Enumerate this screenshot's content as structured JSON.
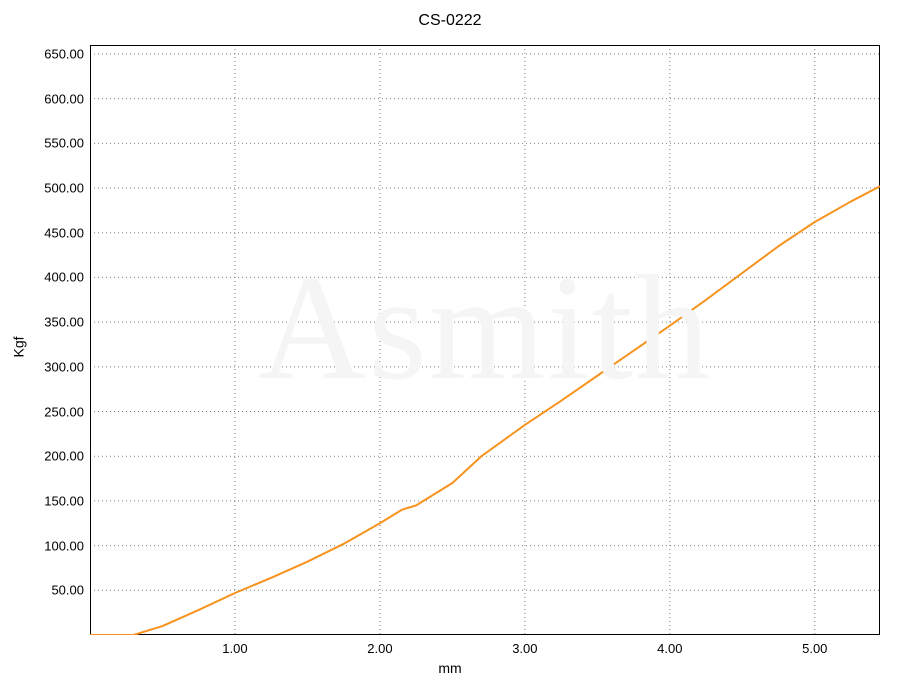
{
  "chart": {
    "type": "line",
    "title": "CS-0222",
    "xlabel": "mm",
    "ylabel": "Kgf",
    "title_fontsize": 16,
    "label_fontsize": 14,
    "tick_fontsize": 13,
    "xlim": [
      0,
      5.45
    ],
    "ylim": [
      0,
      660
    ],
    "xticks": [
      1.0,
      2.0,
      3.0,
      4.0,
      5.0
    ],
    "xtick_labels": [
      "1.00",
      "2.00",
      "3.00",
      "4.00",
      "5.00"
    ],
    "yticks": [
      50,
      100,
      150,
      200,
      250,
      300,
      350,
      400,
      450,
      500,
      550,
      600,
      650
    ],
    "ytick_labels": [
      "50.00",
      "100.00",
      "150.00",
      "200.00",
      "250.00",
      "300.00",
      "350.00",
      "400.00",
      "450.00",
      "500.00",
      "550.00",
      "600.00",
      "650.00"
    ],
    "background_color": "#ffffff",
    "grid_color": "#808080",
    "grid_dash": "1,3",
    "axis_color": "#000000",
    "line_color": "#f7931e",
    "line_width": 2,
    "watermark_text": "Asmith",
    "watermark_color": "#f5f5f5",
    "series": {
      "x": [
        0.0,
        0.3,
        0.5,
        0.75,
        1.0,
        1.25,
        1.5,
        1.75,
        2.0,
        2.15,
        2.25,
        2.5,
        2.7,
        3.0,
        3.25,
        3.5,
        3.75,
        4.0,
        4.25,
        4.5,
        4.75,
        5.0,
        5.25,
        5.45
      ],
      "y": [
        0,
        0,
        10,
        28,
        47,
        64,
        82,
        102,
        125,
        140,
        145,
        170,
        200,
        235,
        262,
        290,
        318,
        346,
        375,
        405,
        435,
        462,
        485,
        502
      ]
    }
  }
}
